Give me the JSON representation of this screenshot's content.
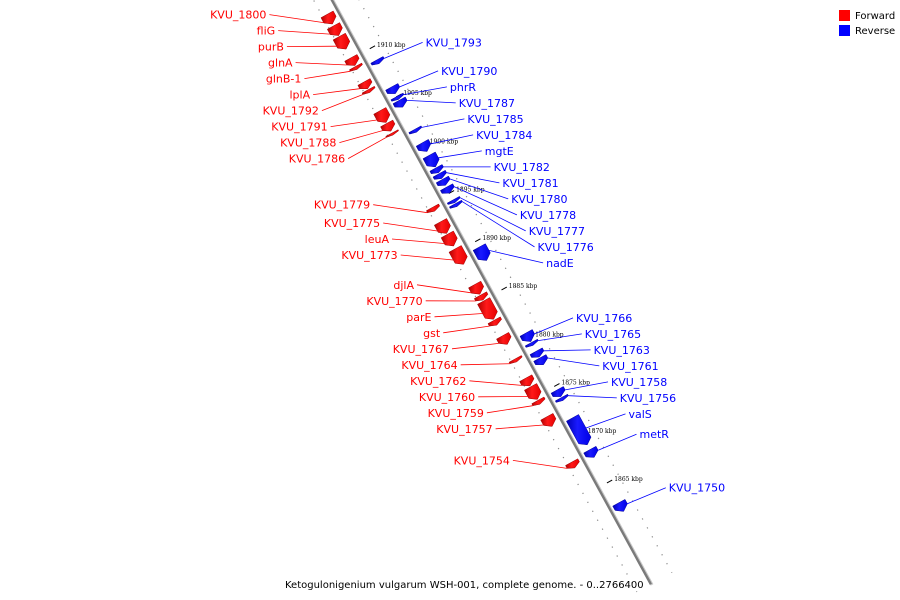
{
  "title": "Ketogulonigenium vulgarum WSH-001, complete genome. - 0..2766400",
  "legend": {
    "forward": {
      "label": "Forward",
      "color": "#ff0000"
    },
    "reverse": {
      "label": "Reverse",
      "color": "#0000ff"
    }
  },
  "kbp_ticks": [
    {
      "label": "1910 kbp",
      "kbp": 1910
    },
    {
      "label": "1905 kbp",
      "kbp": 1905
    },
    {
      "label": "1900 kbp",
      "kbp": 1900
    },
    {
      "label": "1895 kbp",
      "kbp": 1895
    },
    {
      "label": "1890 kbp",
      "kbp": 1890
    },
    {
      "label": "1885 kbp",
      "kbp": 1885
    },
    {
      "label": "1880 kbp",
      "kbp": 1880
    },
    {
      "label": "1875 kbp",
      "kbp": 1875
    },
    {
      "label": "1870 kbp",
      "kbp": 1870
    },
    {
      "label": "1865 kbp",
      "kbp": 1865
    }
  ],
  "genes": [
    {
      "name": "KVU_1800",
      "strand": "forward",
      "start": 1914.6,
      "end": 1913.6
    },
    {
      "name": "fliG",
      "strand": "forward",
      "start": 1913.4,
      "end": 1912.4
    },
    {
      "name": "purB",
      "strand": "forward",
      "start": 1912.3,
      "end": 1911.0
    },
    {
      "name": "glnA",
      "strand": "forward",
      "start": 1910.1,
      "end": 1909.3
    },
    {
      "name": "glnB-1",
      "strand": "forward",
      "start": 1909.2,
      "end": 1908.9
    },
    {
      "name": "lplA",
      "strand": "forward",
      "start": 1907.6,
      "end": 1906.9
    },
    {
      "name": "KVU_1792",
      "strand": "forward",
      "start": 1906.8,
      "end": 1906.5
    },
    {
      "name": "KVU_1791",
      "strand": "forward",
      "start": 1904.6,
      "end": 1903.4
    },
    {
      "name": "KVU_1788",
      "strand": "forward",
      "start": 1903.3,
      "end": 1902.5
    },
    {
      "name": "KVU_1786",
      "strand": "forward",
      "start": 1902.3,
      "end": 1902.1
    },
    {
      "name": "KVU_1779",
      "strand": "forward",
      "start": 1894.6,
      "end": 1894.2
    },
    {
      "name": "KVU_1775",
      "strand": "forward",
      "start": 1893.1,
      "end": 1891.9
    },
    {
      "name": "leuA",
      "strand": "forward",
      "start": 1891.8,
      "end": 1890.6
    },
    {
      "name": "KVU_1773",
      "strand": "forward",
      "start": 1890.3,
      "end": 1888.7
    },
    {
      "name": "djlA",
      "strand": "forward",
      "start": 1886.6,
      "end": 1885.6
    },
    {
      "name": "KVU_1770",
      "strand": "forward",
      "start": 1885.5,
      "end": 1885.0
    },
    {
      "name": "parE",
      "strand": "forward",
      "start": 1884.9,
      "end": 1883.0
    },
    {
      "name": "gst",
      "strand": "forward",
      "start": 1882.9,
      "end": 1882.4
    },
    {
      "name": "KVU_1767",
      "strand": "forward",
      "start": 1881.3,
      "end": 1880.4
    },
    {
      "name": "KVU_1764",
      "strand": "forward",
      "start": 1878.9,
      "end": 1878.6
    },
    {
      "name": "KVU_1762",
      "strand": "forward",
      "start": 1876.9,
      "end": 1876.1
    },
    {
      "name": "KVU_1760",
      "strand": "forward",
      "start": 1876.0,
      "end": 1874.7
    },
    {
      "name": "KVU_1759",
      "strand": "forward",
      "start": 1874.6,
      "end": 1874.2
    },
    {
      "name": "KVU_1757",
      "strand": "forward",
      "start": 1872.9,
      "end": 1871.9
    },
    {
      "name": "KVU_1754",
      "strand": "forward",
      "start": 1868.2,
      "end": 1867.6
    },
    {
      "name": "KVU_1793",
      "strand": "reverse",
      "start": 1908.8,
      "end": 1908.4
    },
    {
      "name": "KVU_1790",
      "strand": "reverse",
      "start": 1906.0,
      "end": 1905.3
    },
    {
      "name": "phrR",
      "strand": "reverse",
      "start": 1905.0,
      "end": 1904.7
    },
    {
      "name": "KVU_1787",
      "strand": "reverse",
      "start": 1904.6,
      "end": 1903.9
    },
    {
      "name": "KVU_1785",
      "strand": "reverse",
      "start": 1901.6,
      "end": 1901.3
    },
    {
      "name": "KVU_1784",
      "strand": "reverse",
      "start": 1900.2,
      "end": 1899.3
    },
    {
      "name": "mgtE",
      "strand": "reverse",
      "start": 1898.9,
      "end": 1897.7
    },
    {
      "name": "KVU_1782",
      "strand": "reverse",
      "start": 1897.6,
      "end": 1897.1
    },
    {
      "name": "KVU_1781",
      "strand": "reverse",
      "start": 1897.0,
      "end": 1896.5
    },
    {
      "name": "KVU_1780",
      "strand": "reverse",
      "start": 1896.4,
      "end": 1895.8
    },
    {
      "name": "KVU_1778",
      "strand": "reverse",
      "start": 1895.6,
      "end": 1895.0
    },
    {
      "name": "KVU_1777",
      "strand": "reverse",
      "start": 1894.3,
      "end": 1894.0
    },
    {
      "name": "KVU_1776",
      "strand": "reverse",
      "start": 1893.9,
      "end": 1893.6
    },
    {
      "name": "nadE",
      "strand": "reverse",
      "start": 1889.4,
      "end": 1888.0
    },
    {
      "name": "KVU_1766",
      "strand": "reverse",
      "start": 1880.5,
      "end": 1879.6
    },
    {
      "name": "KVU_1765",
      "strand": "reverse",
      "start": 1879.5,
      "end": 1879.2
    },
    {
      "name": "KVU_1763",
      "strand": "reverse",
      "start": 1878.6,
      "end": 1878.0
    },
    {
      "name": "KVU_1761",
      "strand": "reverse",
      "start": 1877.9,
      "end": 1877.2
    },
    {
      "name": "KVU_1758",
      "strand": "reverse",
      "start": 1874.6,
      "end": 1873.9
    },
    {
      "name": "KVU_1756",
      "strand": "reverse",
      "start": 1873.8,
      "end": 1873.5
    },
    {
      "name": "valS",
      "strand": "reverse",
      "start": 1871.7,
      "end": 1868.9
    },
    {
      "name": "metR",
      "strand": "reverse",
      "start": 1868.4,
      "end": 1867.6
    },
    {
      "name": "KVU_1750",
      "strand": "reverse",
      "start": 1862.9,
      "end": 1862.0
    }
  ]
}
